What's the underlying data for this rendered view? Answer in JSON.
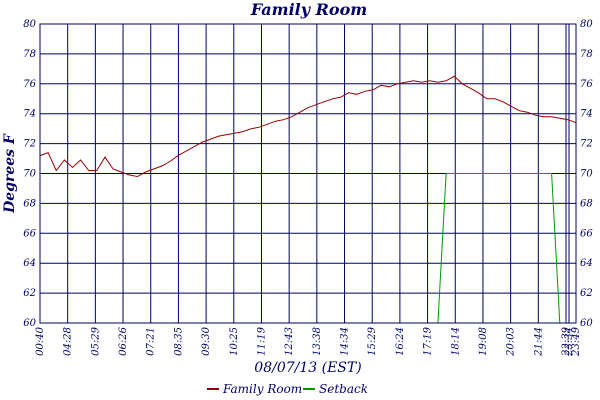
{
  "colors": {
    "text": "#000066",
    "grid": "#000066",
    "family_room": "#990000",
    "setback": "#009900",
    "background": "#ffffff"
  },
  "chart_data": {
    "type": "line",
    "title": "Family Room",
    "xlabel": "08/07/13 (EST)",
    "ylabel": "Degrees F",
    "ylim": [
      60,
      80
    ],
    "y_ticks": [
      60,
      62,
      64,
      66,
      68,
      70,
      72,
      74,
      76,
      78,
      80
    ],
    "x_ticks": [
      "00:40",
      "04:28",
      "05:29",
      "06:26",
      "07:21",
      "08:35",
      "09:30",
      "10:25",
      "11:19",
      "12:43",
      "13:38",
      "14:34",
      "15:29",
      "16:24",
      "17:19",
      "18:14",
      "19:08",
      "20:03",
      "21:44",
      "22:39",
      "23:34",
      "23:49"
    ],
    "grid": true,
    "legend_position": "bottom",
    "series": [
      {
        "name": "Family Room",
        "color": "#990000",
        "values": [
          71.2,
          71.4,
          70.2,
          70.9,
          70.4,
          70.9,
          70.2,
          70.2,
          71.1,
          70.3,
          70.1,
          69.9,
          69.8,
          70.1,
          70.3,
          70.5,
          70.8,
          71.2,
          71.5,
          71.8,
          72.1,
          72.3,
          72.5,
          72.6,
          72.7,
          72.8,
          73.0,
          73.1,
          73.3,
          73.5,
          73.6,
          73.8,
          74.1,
          74.4,
          74.6,
          74.8,
          75.0,
          75.1,
          75.4,
          75.3,
          75.5,
          75.6,
          75.9,
          75.8,
          76.0,
          76.1,
          76.2,
          76.1,
          76.2,
          76.1,
          76.2,
          76.5,
          76.0,
          75.7,
          75.4,
          75.0,
          75.0,
          74.8,
          74.5,
          74.2,
          74.1,
          73.9,
          73.8,
          73.8,
          73.7,
          73.6,
          73.4
        ]
      },
      {
        "name": "Setback",
        "color": "#009900",
        "values": [
          60,
          60,
          60,
          60,
          60,
          60,
          60,
          60,
          60,
          60,
          60,
          60,
          60,
          60,
          60,
          60,
          60,
          60,
          60,
          60,
          60,
          60,
          60,
          60,
          60,
          60,
          60,
          60,
          60,
          60,
          60,
          60,
          60,
          60,
          60,
          60,
          60,
          60,
          60,
          60,
          60,
          60,
          60,
          60,
          60,
          60,
          60,
          60,
          60,
          60,
          70,
          70,
          70,
          70,
          70,
          70,
          70,
          70,
          70,
          70,
          70,
          70,
          70,
          70,
          60,
          60,
          60
        ]
      }
    ]
  }
}
